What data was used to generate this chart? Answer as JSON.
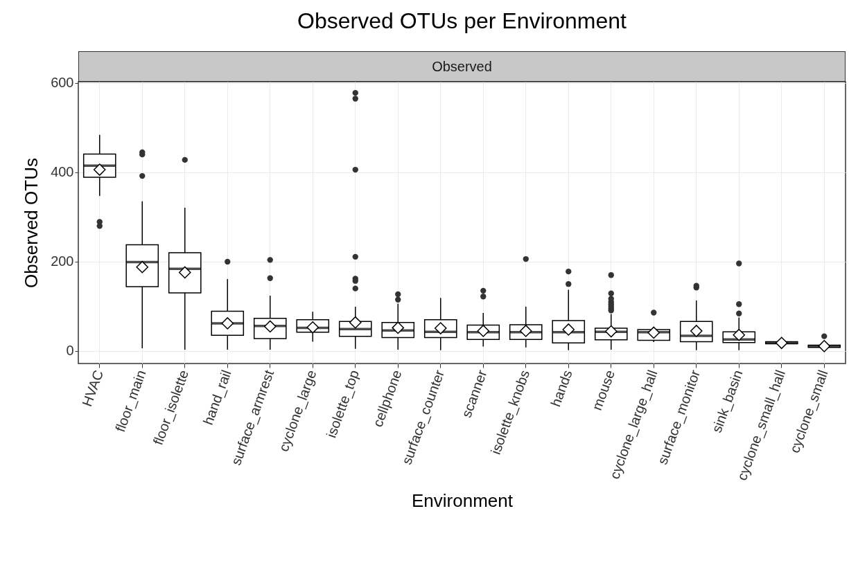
{
  "chart_data": {
    "type": "box",
    "title": "Observed OTUs per Environment",
    "subtitle": "Observed",
    "xlabel": "Environment",
    "ylabel": "Observed OTUs",
    "categories": [
      "HVAC",
      "floor_main",
      "floor_isolette",
      "hand_rail",
      "surface_armrest",
      "cyclone_large",
      "isolette_top",
      "cellphone",
      "surface_counter",
      "scanner",
      "isolette_knobs",
      "hands",
      "mouse",
      "cyclone_large_hall",
      "surface_monitor",
      "sink_basin",
      "cyclone_small_hall",
      "cyclone_small"
    ],
    "boxes": [
      {
        "low": 347,
        "q1": 389,
        "median": 415,
        "q3": 441,
        "high": 484,
        "mean": 406,
        "outliers": [
          280,
          289
        ]
      },
      {
        "low": 6,
        "q1": 144,
        "median": 199,
        "q3": 238,
        "high": 335,
        "mean": 188,
        "outliers": [
          392,
          440,
          445
        ]
      },
      {
        "low": 3,
        "q1": 130,
        "median": 184,
        "q3": 220,
        "high": 321,
        "mean": 176,
        "outliers": [
          428
        ]
      },
      {
        "low": 3,
        "q1": 35,
        "median": 62,
        "q3": 89,
        "high": 161,
        "mean": 62,
        "outliers": [
          200
        ]
      },
      {
        "low": 3,
        "q1": 28,
        "median": 56,
        "q3": 73,
        "high": 124,
        "mean": 55,
        "outliers": [
          163,
          204
        ]
      },
      {
        "low": 21,
        "q1": 42,
        "median": 52,
        "q3": 70,
        "high": 88,
        "mean": 53
      },
      {
        "low": 5,
        "q1": 33,
        "median": 49,
        "q3": 66,
        "high": 99,
        "mean": 64,
        "outliers": [
          140,
          157,
          162,
          211,
          406,
          565,
          578
        ]
      },
      {
        "low": 3,
        "q1": 30,
        "median": 46,
        "q3": 64,
        "high": 106,
        "mean": 52,
        "outliers": [
          115,
          127
        ]
      },
      {
        "low": 2,
        "q1": 30,
        "median": 43,
        "q3": 70,
        "high": 119,
        "mean": 51
      },
      {
        "low": 10,
        "q1": 26,
        "median": 42,
        "q3": 58,
        "high": 85,
        "mean": 45,
        "outliers": [
          122,
          135
        ]
      },
      {
        "low": 8,
        "q1": 26,
        "median": 42,
        "q3": 59,
        "high": 99,
        "mean": 45,
        "outliers": [
          206
        ]
      },
      {
        "low": 2,
        "q1": 18,
        "median": 42,
        "q3": 68,
        "high": 137,
        "mean": 48,
        "outliers": [
          150,
          178
        ]
      },
      {
        "low": 3,
        "q1": 25,
        "median": 43,
        "q3": 51,
        "high": 83,
        "mean": 44,
        "outliers": [
          91,
          95,
          100,
          105,
          110,
          117,
          129,
          170
        ]
      },
      {
        "low": 20,
        "q1": 24,
        "median": 42,
        "q3": 48,
        "high": 54,
        "mean": 41,
        "outliers": [
          86
        ]
      },
      {
        "low": 2,
        "q1": 21,
        "median": 34,
        "q3": 66,
        "high": 113,
        "mean": 45,
        "outliers": [
          142,
          146
        ]
      },
      {
        "low": 2,
        "q1": 19,
        "median": 26,
        "q3": 43,
        "high": 75,
        "mean": 36,
        "outliers": [
          84,
          105,
          196
        ]
      },
      {
        "low": 15,
        "q1": 16,
        "median": 18,
        "q3": 21,
        "high": 22,
        "mean": 18
      },
      {
        "low": 6,
        "q1": 8,
        "median": 11,
        "q3": 13,
        "high": 14,
        "mean": 11,
        "outliers": [
          33
        ]
      }
    ],
    "ylim": [
      -28,
      603
    ],
    "yticks": [
      0,
      200,
      400,
      600
    ],
    "grid": true,
    "marker": "diamond"
  }
}
